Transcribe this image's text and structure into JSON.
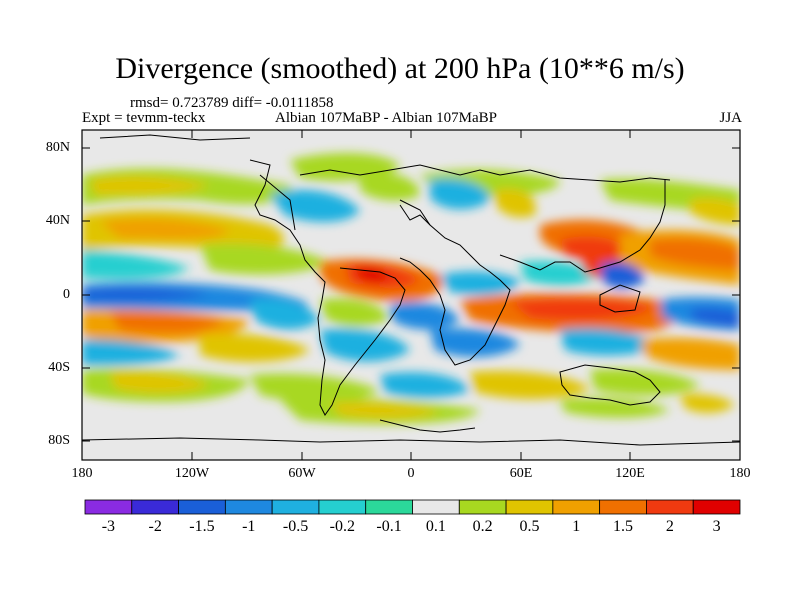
{
  "figure": {
    "title": "Divergence (smoothed) at 200 hPa (10**6 m/s)",
    "stats": "rmsd= 0.723789 diff= -0.0111858",
    "experiment": "Expt = tevmm-teckx",
    "periods": "Albian   107MaBP - Albian   107MaBP",
    "season": "JJA"
  },
  "axes": {
    "y_ticks": [
      "80N",
      "40N",
      "0",
      "40S",
      "80S"
    ],
    "x_ticks": [
      "180",
      "120W",
      "60W",
      "0",
      "60E",
      "120E",
      "180"
    ]
  },
  "colorbar": {
    "labels": [
      "-3",
      "-2",
      "-1.5",
      "-1",
      "-0.5",
      "-0.2",
      "-0.1",
      "0.1",
      "0.2",
      "0.5",
      "1",
      "1.5",
      "2",
      "3"
    ],
    "colors": [
      "#8a2be2",
      "#3a2ad8",
      "#1a5fd8",
      "#1e88e0",
      "#1fb0e0",
      "#25cfd0",
      "#2bd89a",
      "#e8e8e8",
      "#a8d820",
      "#e0c400",
      "#f0a000",
      "#f07000",
      "#f03a10",
      "#e00000"
    ]
  }
}
